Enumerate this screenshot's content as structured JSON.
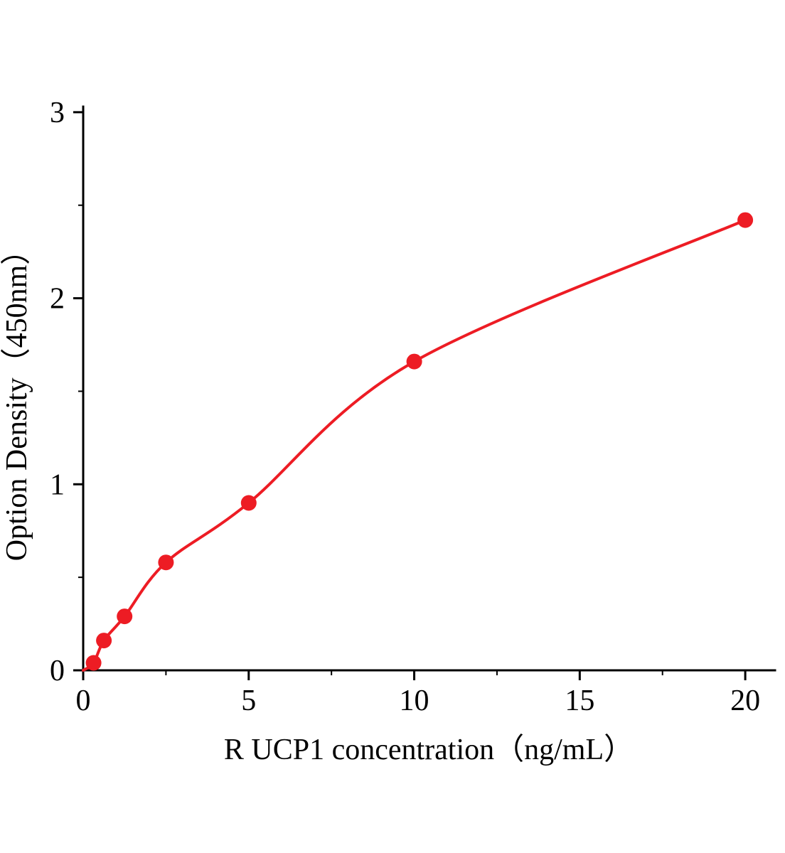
{
  "chart_data": {
    "type": "scatter",
    "title": "",
    "xlabel": "R UCP1 concentration（ng/mL）",
    "ylabel": "Option Density（450nm）",
    "x": [
      0.313,
      0.625,
      1.25,
      2.5,
      5,
      10,
      20
    ],
    "y": [
      0.04,
      0.16,
      0.29,
      0.58,
      0.9,
      1.66,
      2.42
    ],
    "curve": "smooth saturating fit through all points starting at origin",
    "xlim": [
      0,
      20.9
    ],
    "ylim": [
      0,
      3.03
    ],
    "x_ticks": [
      0,
      5,
      10,
      15,
      20
    ],
    "y_ticks": [
      0,
      1,
      2,
      3
    ],
    "x_minor_step": 2.5,
    "y_minor_step": 0.5,
    "grid": false,
    "legend": "none",
    "line_color": "#ed1c24",
    "marker_color": "#ed1c24",
    "marker_radius": 11,
    "axis_color": "#000000",
    "background": "#ffffff"
  }
}
